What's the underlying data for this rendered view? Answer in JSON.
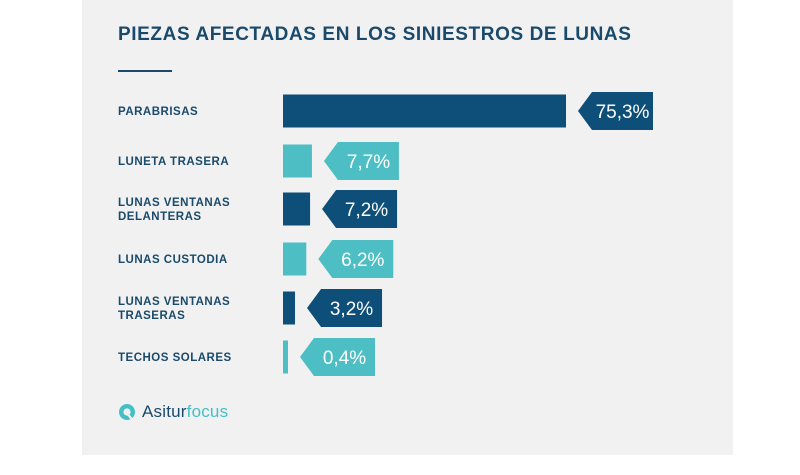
{
  "colors": {
    "dark": "#0d4f78",
    "light": "#4dbfc4",
    "text": "#1a4a6b",
    "background": "#f1f1f1"
  },
  "chart_data": {
    "type": "bar",
    "orientation": "horizontal",
    "title": "PIEZAS AFECTADAS EN LOS SINIESTROS DE LUNAS",
    "categories": [
      [
        "PARABRISAS"
      ],
      [
        "LUNETA TRASERA"
      ],
      [
        "LUNAS  VENTANAS",
        "DELANTERAS"
      ],
      [
        "LUNAS CUSTODIA"
      ],
      [
        "LUNAS VENTANAS",
        "TRASERAS"
      ],
      [
        "TECHOS SOLARES"
      ]
    ],
    "values": [
      75.3,
      7.7,
      7.2,
      6.2,
      3.2,
      0.4
    ],
    "value_labels": [
      "75,3%",
      "7,7%",
      "7,2%",
      "6,2%",
      "3,2%",
      "0,4%"
    ],
    "bar_colors": [
      "dark",
      "light",
      "dark",
      "light",
      "dark",
      "light"
    ],
    "unit": "%"
  },
  "logo": {
    "brand": "Asitur",
    "suffix": "focus"
  }
}
